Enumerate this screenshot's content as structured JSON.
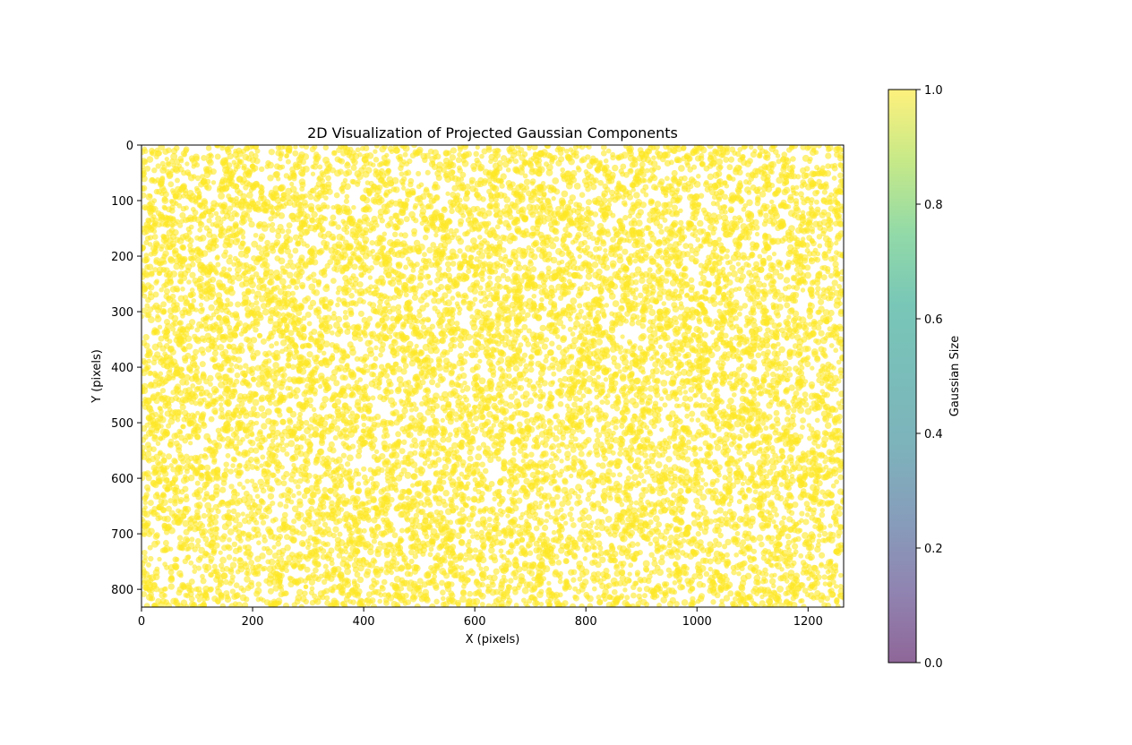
{
  "chart_data": {
    "type": "scatter",
    "title": "2D Visualization of Projected Gaussian Components",
    "xlabel": "X (pixels)",
    "ylabel": "Y (pixels)",
    "xlim": [
      0,
      1264
    ],
    "ylim": [
      832,
      0
    ],
    "y_inverted": true,
    "x_ticks": [
      "0",
      "200",
      "400",
      "600",
      "800",
      "1000",
      "1200"
    ],
    "y_ticks": [
      "0",
      "100",
      "200",
      "300",
      "400",
      "500",
      "600",
      "700",
      "800"
    ],
    "grid": false,
    "point_color": "#fde725",
    "point_alpha": 0.6,
    "points_note": "approximately 12000 uniformly scattered points; every point maps to the top of the colormap (value 1.0)",
    "approx_point_count": 12000,
    "colorbar": {
      "label": "Gaussian Size",
      "range": [
        0.0,
        1.0
      ],
      "ticks": [
        "0.0",
        "0.2",
        "0.4",
        "0.6",
        "0.8",
        "1.0"
      ],
      "colormap": "viridis",
      "alpha": 0.6
    }
  }
}
